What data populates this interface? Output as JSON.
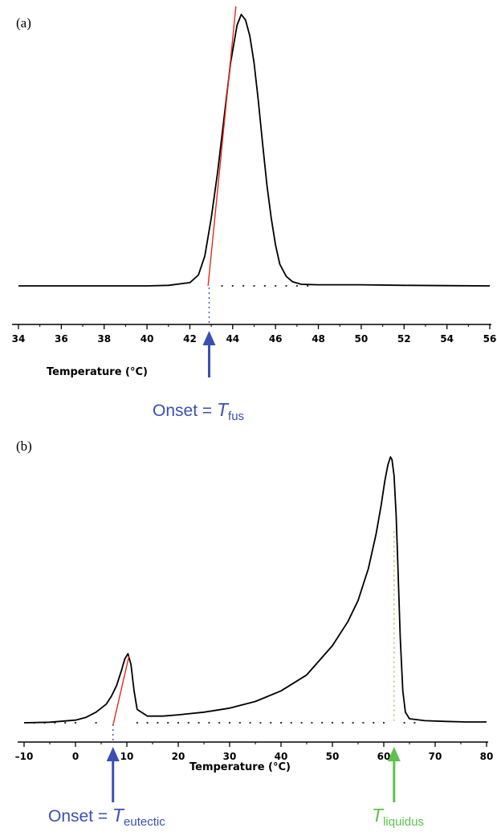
{
  "chart_data": [
    {
      "type": "line",
      "panel_label": "(a)",
      "xlabel": "Temperature (°C)",
      "ylabel": "",
      "xlim": [
        34,
        56
      ],
      "ticks": [
        "34",
        "36",
        "38",
        "40",
        "42",
        "44",
        "46",
        "48",
        "50",
        "52",
        "54",
        "56"
      ],
      "grid": false,
      "series": [
        {
          "color": "#000000",
          "x": [
            34,
            36,
            38,
            40,
            41,
            42,
            42.4,
            42.7,
            43.0,
            43.3,
            43.6,
            43.9,
            44.2,
            44.4,
            44.6,
            44.8,
            45.0,
            45.2,
            45.4,
            45.6,
            45.8,
            46.0,
            46.2,
            46.5,
            46.8,
            47.2,
            48,
            50,
            52,
            54,
            56
          ],
          "y": [
            0,
            0,
            0,
            0,
            0.002,
            0.012,
            0.04,
            0.11,
            0.25,
            0.42,
            0.62,
            0.82,
            0.96,
            1.0,
            0.98,
            0.92,
            0.82,
            0.68,
            0.52,
            0.37,
            0.25,
            0.15,
            0.08,
            0.035,
            0.015,
            0.006,
            0.004,
            0.004,
            0.002,
            0.001,
            0.0
          ]
        }
      ],
      "tangent": {
        "color": "#e8281e",
        "x": [
          42.85,
          44.15
        ],
        "y": [
          0.0,
          1.03
        ]
      },
      "baseline_dots_x": [
        43.5,
        44.0,
        44.5,
        45.0,
        45.5,
        46.0,
        46.5,
        47.0,
        47.5
      ],
      "onset": {
        "x": 42.9,
        "color": "#3a4fb5",
        "text": "Onset = ",
        "symbol": "T",
        "subscript": "fus"
      }
    },
    {
      "type": "line",
      "panel_label": "(b)",
      "xlabel": "Temperature (°C)",
      "ylabel": "",
      "xlim": [
        -10,
        80
      ],
      "ticks": [
        "–10",
        "0",
        "10",
        "20",
        "30",
        "40",
        "50",
        "60",
        "70",
        "80"
      ],
      "grid": false,
      "series": [
        {
          "color": "#000000",
          "x": [
            -10,
            -5,
            0,
            2,
            4,
            6,
            7,
            8,
            9,
            9.6,
            10.2,
            10.8,
            11.4,
            12,
            14,
            17,
            20,
            25,
            30,
            35,
            40,
            45,
            50,
            53,
            55,
            57,
            58.5,
            59.5,
            60.2,
            60.8,
            61.3,
            61.6,
            62.0,
            62.4,
            62.8,
            63.2,
            63.7,
            64.2,
            65,
            68,
            72,
            76,
            80
          ],
          "y": [
            0,
            0.002,
            0.01,
            0.02,
            0.04,
            0.07,
            0.1,
            0.14,
            0.2,
            0.24,
            0.26,
            0.22,
            0.12,
            0.05,
            0.025,
            0.025,
            0.03,
            0.04,
            0.055,
            0.08,
            0.12,
            0.18,
            0.29,
            0.38,
            0.46,
            0.58,
            0.71,
            0.82,
            0.91,
            0.97,
            1.0,
            0.99,
            0.93,
            0.78,
            0.56,
            0.32,
            0.12,
            0.04,
            0.015,
            0.008,
            0.005,
            0.003,
            0.003
          ]
        }
      ],
      "tangent": {
        "color": "#e8281e",
        "x": [
          7.3,
          10.4
        ],
        "y": [
          -0.01,
          0.25
        ]
      },
      "baseline_dots_x": [
        -8,
        -6,
        -4,
        -2,
        0,
        4,
        12,
        14,
        16,
        18,
        20,
        22,
        24,
        26,
        28,
        30,
        32,
        34,
        36,
        38,
        40,
        42,
        44,
        46,
        48,
        50,
        52,
        54,
        56,
        58,
        60,
        64,
        66
      ],
      "onset": {
        "x": 7.3,
        "color": "#3a4fb5",
        "text": "Onset = ",
        "symbol": "T",
        "subscript": "eutectic"
      },
      "liquidus": {
        "x": 62.0,
        "color": "#5cc24a",
        "symbol": "T",
        "subscript": "liquidus"
      }
    }
  ]
}
